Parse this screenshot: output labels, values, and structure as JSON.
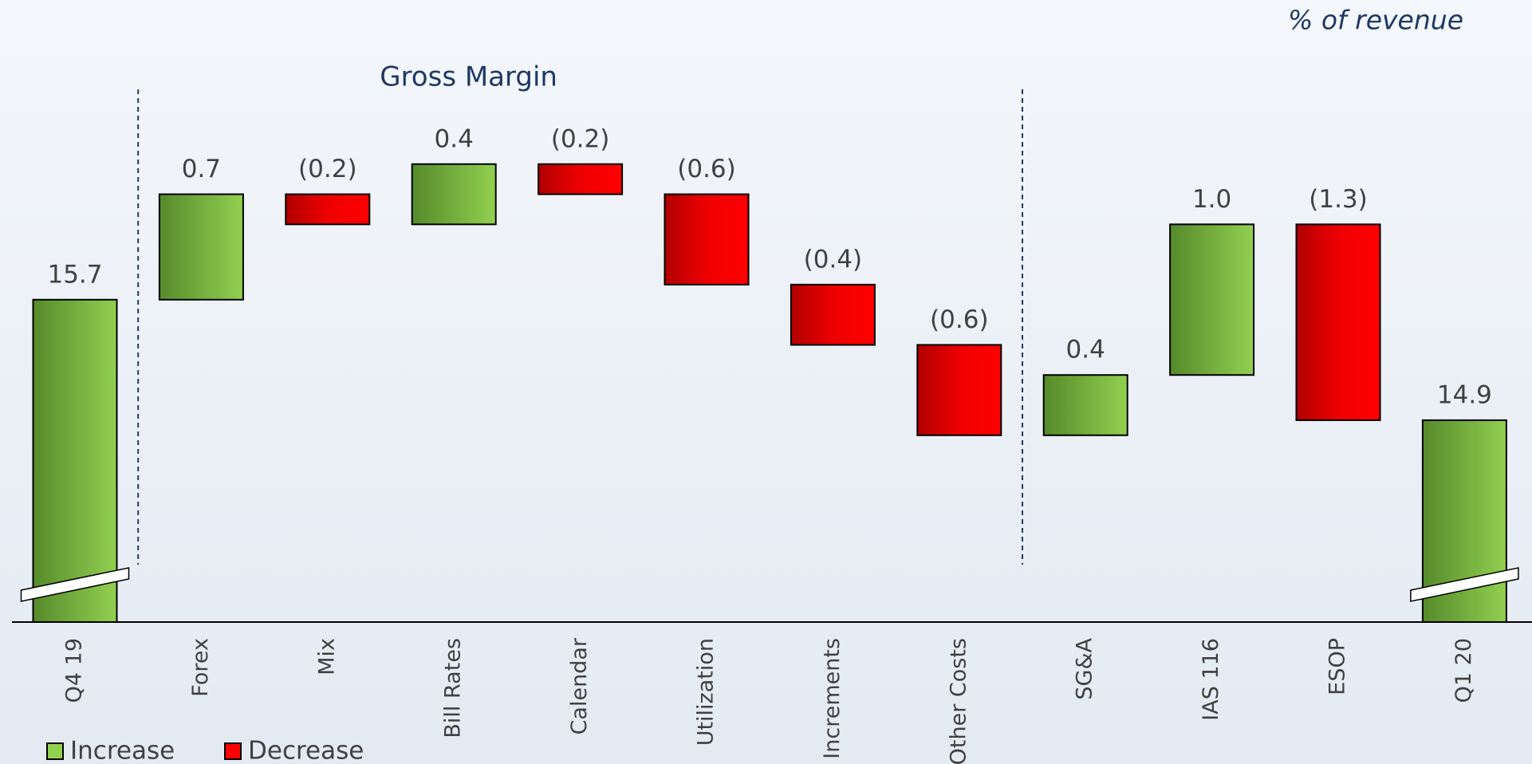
{
  "chart_data": {
    "type": "waterfall",
    "title": "% of revenue",
    "subtitle": "Gross Margin",
    "categories": [
      "Q4 19",
      "Forex",
      "Mix",
      "Bill Rates",
      "Calendar",
      "Utilization",
      "Increments",
      "Other Costs",
      "SG&A",
      "IAS 116",
      "ESOP",
      "Q1 20"
    ],
    "values": [
      15.7,
      0.7,
      -0.2,
      0.4,
      -0.2,
      -0.6,
      -0.4,
      -0.6,
      0.4,
      1.0,
      -1.3,
      14.9
    ],
    "value_labels": [
      "15.7",
      "0.7",
      "(0.2)",
      "0.4",
      "(0.2)",
      "(0.6)",
      "(0.4)",
      "(0.6)",
      "0.4",
      "1.0",
      "(1.3)",
      "14.9"
    ],
    "totals": [
      "Q4 19",
      "Q1 20"
    ],
    "ylim": [
      13.56,
      17.16
    ],
    "legend": [
      {
        "name": "Increase",
        "color": "#92d050"
      },
      {
        "name": "Decrease",
        "color": "#ff0000"
      }
    ]
  }
}
